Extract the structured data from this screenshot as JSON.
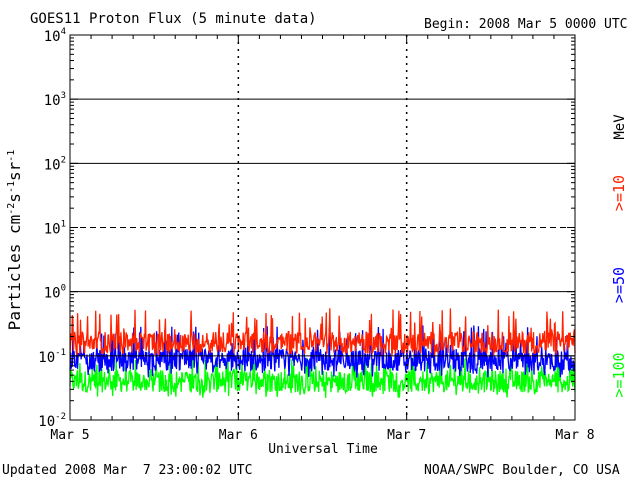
{
  "chart_data": {
    "type": "line",
    "title": "GOES11 Proton Flux (5 minute data)",
    "begin_label": "Begin: 2008 Mar 5 0000 UTC",
    "xlabel": "Universal Time",
    "ylabel": "Particles cm⁻²s⁻¹sr⁻¹",
    "y_scale": "log",
    "ylim": [
      0.01,
      10000
    ],
    "y_ticks": [
      {
        "base": "10",
        "exp": "4",
        "value": 10000
      },
      {
        "base": "10",
        "exp": "3",
        "value": 1000
      },
      {
        "base": "10",
        "exp": "2",
        "value": 100
      },
      {
        "base": "10",
        "exp": "1",
        "value": 10
      },
      {
        "base": "10",
        "exp": "0",
        "value": 1
      },
      {
        "base": "10",
        "exp": "-1",
        "value": 0.1
      },
      {
        "base": "10",
        "exp": "-2",
        "value": 0.01
      }
    ],
    "threshold_lines": [
      {
        "value": 1000,
        "style": "solid"
      },
      {
        "value": 100,
        "style": "solid"
      },
      {
        "value": 10,
        "style": "dashed"
      },
      {
        "value": 1,
        "style": "solid"
      },
      {
        "value": 0.1,
        "style": "solid"
      }
    ],
    "x_ticks": [
      "Mar 5",
      "Mar 6",
      "Mar 7",
      "Mar 8"
    ],
    "xlim_days": [
      0,
      3
    ],
    "unit_label": "MeV",
    "series": [
      {
        "name": ">=10",
        "color": "#ff2200",
        "baseline": 0.16,
        "min": 0.1,
        "max": 0.55
      },
      {
        "name": ">=50",
        "color": "#0000ff",
        "baseline": 0.085,
        "min": 0.045,
        "max": 0.3
      },
      {
        "name": ">=100",
        "color": "#00ff00",
        "baseline": 0.04,
        "min": 0.022,
        "max": 0.095
      }
    ]
  },
  "footer": {
    "updated": "Updated 2008 Mar  7 23:00:02 UTC",
    "credit": "NOAA/SWPC Boulder, CO USA"
  }
}
